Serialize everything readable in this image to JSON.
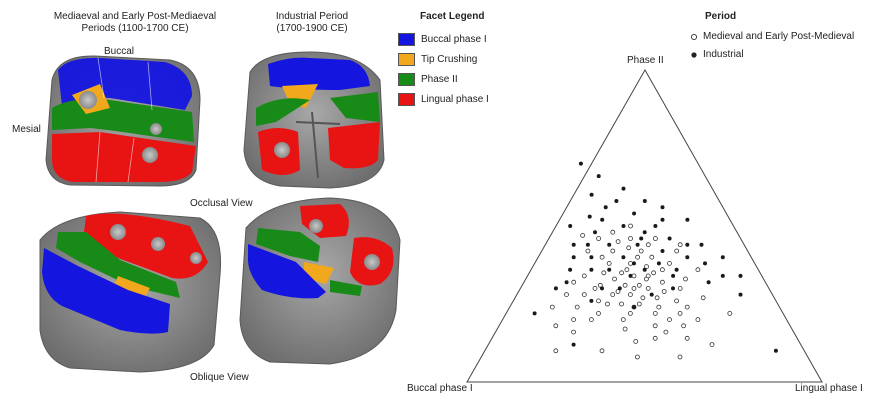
{
  "left_panel": {
    "col1_title": "Mediaeval and Early Post-Mediaeval",
    "col1_title_line2": "Periods (1100-1700 CE)",
    "col2_title": "Industrial Period",
    "col2_title_line2": "(1700-1900 CE)",
    "buccal_label": "Buccal",
    "mesial_label": "Mesial",
    "occlusal_label": "Occlusal View",
    "oblique_label": "Oblique View"
  },
  "facet_legend": {
    "title": "Facet Legend",
    "items": [
      {
        "label": "Buccal phase I",
        "color": "#1515e0"
      },
      {
        "label": "Tip Crushing",
        "color": "#f2a81c"
      },
      {
        "label": "Phase II",
        "color": "#178a17"
      },
      {
        "label": "Lingual phase I",
        "color": "#e81414"
      }
    ]
  },
  "period_legend": {
    "title": "Period",
    "items": [
      {
        "label": "Medieval and Early Post-Medieval",
        "marker": "open-circle"
      },
      {
        "label": "Industrial",
        "marker": "filled-circle"
      }
    ]
  },
  "chart_data": {
    "type": "scatter",
    "ternary": true,
    "axes": {
      "top": "Phase II",
      "left": "Buccal phase I",
      "right": "Lingual phase I"
    },
    "series": [
      {
        "name": "Medieval and Early Post-Medieval",
        "points": [
          [
            0.33,
            0.33,
            0.34
          ],
          [
            0.36,
            0.34,
            0.3
          ],
          [
            0.31,
            0.37,
            0.32
          ],
          [
            0.38,
            0.3,
            0.32
          ],
          [
            0.29,
            0.32,
            0.39
          ],
          [
            0.35,
            0.38,
            0.27
          ],
          [
            0.4,
            0.28,
            0.32
          ],
          [
            0.33,
            0.27,
            0.4
          ],
          [
            0.42,
            0.33,
            0.25
          ],
          [
            0.27,
            0.36,
            0.37
          ],
          [
            0.3,
            0.29,
            0.41
          ],
          [
            0.37,
            0.36,
            0.27
          ],
          [
            0.45,
            0.28,
            0.27
          ],
          [
            0.34,
            0.24,
            0.42
          ],
          [
            0.41,
            0.24,
            0.35
          ],
          [
            0.28,
            0.26,
            0.46
          ],
          [
            0.39,
            0.35,
            0.26
          ],
          [
            0.32,
            0.4,
            0.28
          ],
          [
            0.47,
            0.31,
            0.22
          ],
          [
            0.36,
            0.22,
            0.42
          ],
          [
            0.3,
            0.42,
            0.28
          ],
          [
            0.43,
            0.22,
            0.35
          ],
          [
            0.25,
            0.3,
            0.45
          ],
          [
            0.38,
            0.42,
            0.2
          ],
          [
            0.5,
            0.26,
            0.24
          ],
          [
            0.33,
            0.2,
            0.47
          ],
          [
            0.27,
            0.44,
            0.29
          ],
          [
            0.46,
            0.2,
            0.34
          ],
          [
            0.41,
            0.38,
            0.21
          ],
          [
            0.29,
            0.22,
            0.49
          ],
          [
            0.52,
            0.22,
            0.26
          ],
          [
            0.35,
            0.45,
            0.2
          ],
          [
            0.24,
            0.38,
            0.38
          ],
          [
            0.44,
            0.35,
            0.21
          ],
          [
            0.48,
            0.25,
            0.27
          ],
          [
            0.31,
            0.46,
            0.23
          ],
          [
            0.55,
            0.2,
            0.25
          ],
          [
            0.38,
            0.18,
            0.44
          ],
          [
            0.26,
            0.24,
            0.5
          ],
          [
            0.49,
            0.3,
            0.21
          ],
          [
            0.34,
            0.3,
            0.36
          ],
          [
            0.4,
            0.31,
            0.29
          ],
          [
            0.32,
            0.34,
            0.34
          ],
          [
            0.37,
            0.27,
            0.36
          ],
          [
            0.43,
            0.29,
            0.28
          ],
          [
            0.3,
            0.35,
            0.35
          ],
          [
            0.36,
            0.31,
            0.33
          ],
          [
            0.39,
            0.25,
            0.36
          ],
          [
            0.28,
            0.4,
            0.32
          ],
          [
            0.44,
            0.25,
            0.31
          ],
          [
            0.33,
            0.43,
            0.24
          ],
          [
            0.42,
            0.4,
            0.18
          ],
          [
            0.22,
            0.33,
            0.45
          ],
          [
            0.53,
            0.28,
            0.19
          ],
          [
            0.36,
            0.16,
            0.48
          ],
          [
            0.47,
            0.17,
            0.36
          ],
          [
            0.3,
            0.18,
            0.52
          ],
          [
            0.57,
            0.24,
            0.19
          ],
          [
            0.25,
            0.2,
            0.55
          ],
          [
            0.6,
            0.2,
            0.2
          ],
          [
            0.2,
            0.42,
            0.38
          ],
          [
            0.5,
            0.34,
            0.16
          ],
          [
            0.35,
            0.48,
            0.17
          ],
          [
            0.45,
            0.42,
            0.13
          ],
          [
            0.62,
            0.16,
            0.22
          ],
          [
            0.4,
            0.14,
            0.46
          ],
          [
            0.24,
            0.46,
            0.3
          ],
          [
            0.54,
            0.32,
            0.14
          ],
          [
            0.31,
            0.14,
            0.55
          ],
          [
            0.58,
            0.28,
            0.14
          ],
          [
            0.2,
            0.27,
            0.53
          ],
          [
            0.66,
            0.18,
            0.16
          ],
          [
            0.17,
            0.36,
            0.47
          ],
          [
            0.4,
            0.46,
            0.14
          ],
          [
            0.46,
            0.13,
            0.41
          ],
          [
            0.7,
            0.1,
            0.2
          ],
          [
            0.25,
            0.12,
            0.63
          ],
          [
            0.48,
            0.08,
            0.44
          ],
          [
            0.36,
            0.08,
            0.56
          ],
          [
            0.15,
            0.22,
            0.63
          ],
          [
            0.57,
            0.1,
            0.33
          ],
          [
            0.18,
            0.44,
            0.38
          ],
          [
            0.64,
            0.24,
            0.12
          ],
          [
            0.29,
            0.5,
            0.21
          ],
          [
            0.44,
            0.47,
            0.09
          ]
        ]
      },
      {
        "name": "Industrial",
        "points": [
          [
            0.34,
            0.38,
            0.28
          ],
          [
            0.38,
            0.44,
            0.18
          ],
          [
            0.28,
            0.46,
            0.26
          ],
          [
            0.42,
            0.36,
            0.22
          ],
          [
            0.31,
            0.5,
            0.19
          ],
          [
            0.24,
            0.42,
            0.34
          ],
          [
            0.45,
            0.4,
            0.15
          ],
          [
            0.36,
            0.52,
            0.12
          ],
          [
            0.2,
            0.46,
            0.34
          ],
          [
            0.27,
            0.38,
            0.35
          ],
          [
            0.47,
            0.36,
            0.17
          ],
          [
            0.33,
            0.56,
            0.11
          ],
          [
            0.22,
            0.5,
            0.28
          ],
          [
            0.4,
            0.48,
            0.12
          ],
          [
            0.18,
            0.4,
            0.42
          ],
          [
            0.5,
            0.4,
            0.1
          ],
          [
            0.26,
            0.54,
            0.2
          ],
          [
            0.3,
            0.44,
            0.26
          ],
          [
            0.44,
            0.44,
            0.12
          ],
          [
            0.16,
            0.44,
            0.4
          ],
          [
            0.36,
            0.4,
            0.24
          ],
          [
            0.29,
            0.58,
            0.13
          ],
          [
            0.53,
            0.36,
            0.11
          ],
          [
            0.23,
            0.36,
            0.41
          ],
          [
            0.39,
            0.53,
            0.08
          ],
          [
            0.19,
            0.52,
            0.29
          ],
          [
            0.32,
            0.36,
            0.32
          ],
          [
            0.14,
            0.38,
            0.48
          ],
          [
            0.48,
            0.44,
            0.08
          ],
          [
            0.26,
            0.48,
            0.26
          ],
          [
            0.35,
            0.6,
            0.05
          ],
          [
            0.42,
            0.3,
            0.28
          ],
          [
            0.12,
            0.44,
            0.44
          ],
          [
            0.21,
            0.58,
            0.21
          ],
          [
            0.56,
            0.32,
            0.12
          ],
          [
            0.3,
            0.66,
            0.04
          ],
          [
            0.11,
            0.34,
            0.55
          ],
          [
            0.6,
            0.3,
            0.1
          ],
          [
            0.17,
            0.56,
            0.27
          ],
          [
            0.37,
            0.34,
            0.29
          ],
          [
            0.25,
            0.62,
            0.13
          ],
          [
            0.08,
            0.4,
            0.52
          ],
          [
            0.52,
            0.26,
            0.22
          ],
          [
            0.09,
            0.28,
            0.63
          ],
          [
            0.7,
            0.22,
            0.08
          ],
          [
            0.33,
            0.7,
            -0.03
          ],
          [
            0.06,
            0.34,
            0.6
          ],
          [
            0.64,
            0.12,
            0.24
          ],
          [
            0.25,
            0.34,
            0.41
          ],
          [
            0.46,
            0.5,
            0.04
          ],
          [
            0.16,
            0.32,
            0.52
          ],
          [
            0.27,
            0.3,
            0.43
          ],
          [
            0.34,
            0.28,
            0.38
          ],
          [
            0.41,
            0.24,
            0.35
          ],
          [
            0.12,
            0.52,
            0.36
          ],
          [
            0.08,
            0.1,
            0.82
          ],
          [
            0.47,
            0.3,
            0.23
          ]
        ]
      }
    ]
  }
}
